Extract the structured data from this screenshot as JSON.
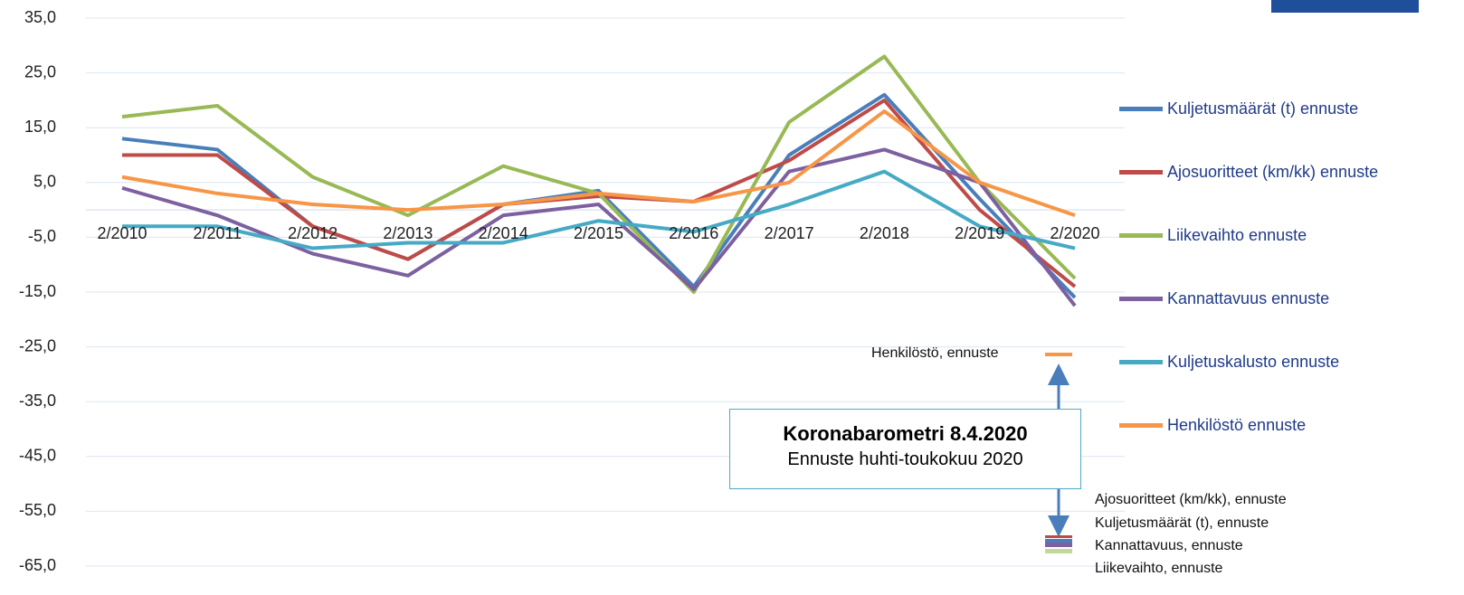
{
  "chart_data": {
    "type": "line",
    "categories": [
      "2/2010",
      "2/2011",
      "2/2012",
      "2/2013",
      "2/2014",
      "2/2015",
      "2/2016",
      "2/2017",
      "2/2018",
      "2/2019",
      "2/2020"
    ],
    "series": [
      {
        "name": "Kuljetusmäärät (t) ennuste",
        "color": "#4a7ebb",
        "values": [
          13,
          11,
          -3,
          -9,
          1,
          3.5,
          -14,
          10,
          21,
          2,
          -16
        ]
      },
      {
        "name": "Ajosuoritteet (km/kk) ennuste",
        "color": "#be4b48",
        "values": [
          10,
          10,
          -3,
          -9,
          1,
          2.5,
          1.5,
          9,
          20,
          0,
          -14
        ]
      },
      {
        "name": "Liikevaihto ennuste",
        "color": "#98b954",
        "values": [
          17,
          19,
          6,
          -1,
          8,
          3,
          -15,
          16,
          28,
          5,
          -12.5
        ]
      },
      {
        "name": "Kannattavuus ennuste",
        "color": "#7d60a0",
        "values": [
          4,
          -1,
          -8,
          -12,
          -1,
          1,
          -14.5,
          7,
          11,
          5,
          -17.5
        ]
      },
      {
        "name": "Kuljetuskalusto ennuste",
        "color": "#46aac5",
        "values": [
          -3,
          -3,
          -7,
          -6,
          -6,
          -2,
          -4,
          1,
          7,
          -3,
          -7
        ]
      },
      {
        "name": "Henkilöstö ennuste",
        "color": "#f79646",
        "values": [
          6,
          3,
          1,
          0,
          1,
          3,
          1.5,
          5,
          18,
          5,
          -1
        ]
      }
    ],
    "ylim": [
      -65,
      35
    ],
    "yticks": [
      {
        "value": -65,
        "label": "-65,0"
      },
      {
        "value": -55,
        "label": "-55,0"
      },
      {
        "value": -45,
        "label": "-45,0"
      },
      {
        "value": -35,
        "label": "-35,0"
      },
      {
        "value": -25,
        "label": "-25,0"
      },
      {
        "value": -15,
        "label": "-15,0"
      },
      {
        "value": -5,
        "label": "-5,0"
      },
      {
        "value": 5,
        "label": "5,0"
      },
      {
        "value": 15,
        "label": "15,0"
      },
      {
        "value": 25,
        "label": "25,0"
      },
      {
        "value": 35,
        "label": "35,0"
      }
    ],
    "grid": true,
    "legend": "right",
    "annotations": {
      "henkilosto": "Henkilöstö, ennuste",
      "box_title": "Koronabarometri 8.4.2020",
      "box_subtitle": "Ennuste huhti-toukokuu 2020",
      "lower": [
        "Ajosuoritteet (km/kk), ennuste",
        "Kuljetusmäärät (t), ennuste",
        "Kannattavuus, ennuste",
        "Liikevaihto, ennuste"
      ]
    }
  }
}
